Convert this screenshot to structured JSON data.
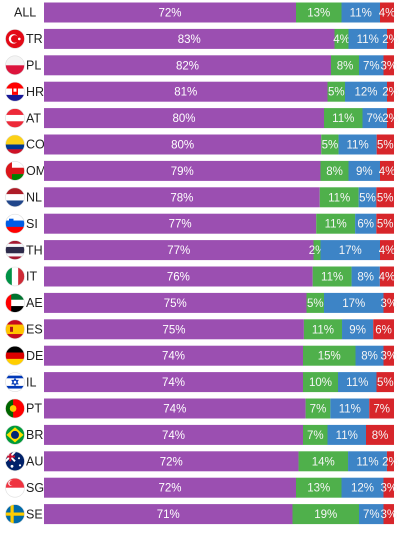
{
  "chart_data": {
    "type": "bar",
    "orientation": "horizontal",
    "stacked": true,
    "percent_stacked": true,
    "legend": "none",
    "grid": false,
    "categories": [
      "ALL",
      "TR",
      "PL",
      "HR",
      "AT",
      "CO",
      "OM",
      "NL",
      "SI",
      "TH",
      "IT",
      "AE",
      "ES",
      "DE",
      "IL",
      "PT",
      "BR",
      "AU",
      "SG",
      "SE"
    ],
    "flags": [
      "none",
      "tr",
      "pl",
      "hr",
      "at",
      "co",
      "om",
      "nl",
      "si",
      "th",
      "it",
      "ae",
      "es",
      "de",
      "il",
      "pt",
      "br",
      "au",
      "sg",
      "se"
    ],
    "series": [
      {
        "color": "#9b4fb1",
        "values": [
          72,
          83,
          82,
          81,
          80,
          80,
          79,
          78,
          77,
          77,
          76,
          75,
          75,
          74,
          74,
          74,
          74,
          72,
          72,
          71
        ],
        "labels": [
          "72%",
          "83%",
          "82%",
          "81%",
          "80%",
          "80%",
          "79%",
          "78%",
          "77%",
          "77%",
          "76%",
          "75%",
          "75%",
          "74%",
          "74%",
          "74%",
          "74%",
          "72%",
          "72%",
          "71%"
        ]
      },
      {
        "color": "#4fb04b",
        "values": [
          13,
          4,
          8,
          5,
          11,
          5,
          8,
          11,
          11,
          2,
          11,
          5,
          11,
          15,
          10,
          7,
          7,
          14,
          13,
          19
        ],
        "labels": [
          "13%",
          "4%",
          "8%",
          "5%",
          "11%",
          "5%",
          "8%",
          "11%",
          "11%",
          "2%",
          "11%",
          "5%",
          "11%",
          "15%",
          "10%",
          "7%",
          "7%",
          "14%",
          "13%",
          "19%"
        ]
      },
      {
        "color": "#3d84c6",
        "values": [
          11,
          11,
          7,
          12,
          7,
          11,
          9,
          5,
          6,
          17,
          8,
          17,
          9,
          8,
          11,
          11,
          11,
          11,
          12,
          7
        ],
        "labels": [
          "11%",
          "11%",
          "7%",
          "12%",
          "7%",
          "11%",
          "9%",
          "5%",
          "6%",
          "17%",
          "8%",
          "17%",
          "9%",
          "8%",
          "11%",
          "11%",
          "11%",
          "11%",
          "12%",
          "7%"
        ]
      },
      {
        "color": "#d7262b",
        "values": [
          4,
          2,
          3,
          2,
          2,
          5,
          4,
          5,
          5,
          4,
          4,
          3,
          6,
          3,
          5,
          7,
          8,
          2,
          3,
          3
        ],
        "labels": [
          "4%",
          "2%",
          "3%",
          "2%",
          "2%",
          "5%",
          "4%",
          "5%",
          "5%",
          "4%",
          "4%",
          "3%",
          "6%",
          "3%",
          "5%",
          "7%",
          "8%",
          "2%",
          "3%",
          "3%"
        ]
      }
    ]
  }
}
